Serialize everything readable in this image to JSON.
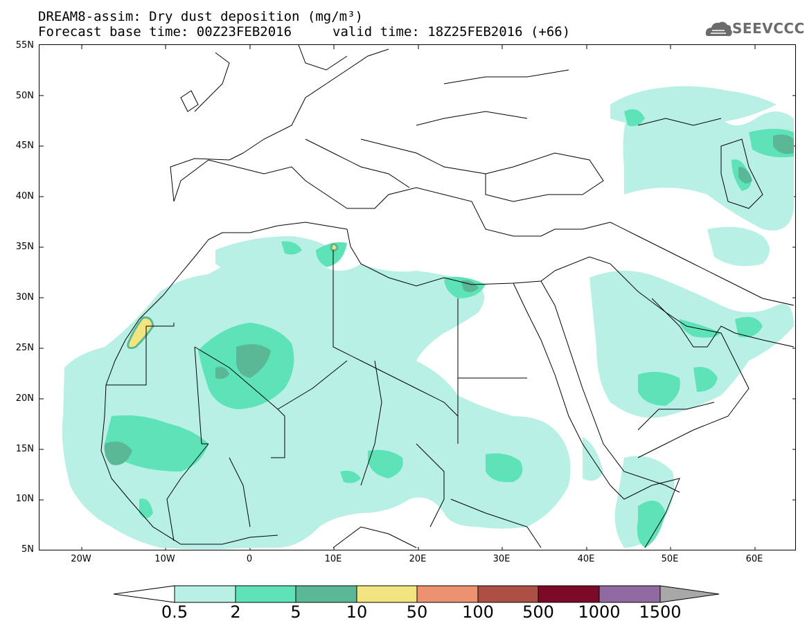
{
  "header": {
    "title_line1": "DREAM8-assim: Dry dust deposition (mg/m³)",
    "title_line2_left": "Forecast base time: 00Z23FEB2016",
    "title_line2_right": "valid time: 18Z25FEB2016 (+66)",
    "logo_text": "SEEVCCC"
  },
  "map": {
    "lat_labels": [
      "55N",
      "50N",
      "45N",
      "40N",
      "35N",
      "30N",
      "25N",
      "20N",
      "15N",
      "10N",
      "5N"
    ],
    "lon_labels": [
      "20W",
      "10W",
      "0",
      "10E",
      "20E",
      "30E",
      "40E",
      "50E",
      "60E"
    ],
    "lat_range": [
      5,
      55
    ],
    "lon_range": [
      -25,
      65
    ]
  },
  "colorbar": {
    "thresholds": [
      "0.5",
      "2",
      "5",
      "10",
      "50",
      "100",
      "500",
      "1000",
      "1500"
    ],
    "colors": [
      "#b8f0e6",
      "#5ee3b8",
      "#5ab896",
      "#f2e47e",
      "#ec9270",
      "#ad4f44",
      "#7d0928",
      "#906aa0",
      "#a8a8a8"
    ],
    "underflow_color": "#ffffff"
  },
  "colors": {
    "low": "#b8f0e6",
    "mid": "#5ee3b8",
    "high": "#5ab896",
    "peak": "#f2e47e"
  }
}
